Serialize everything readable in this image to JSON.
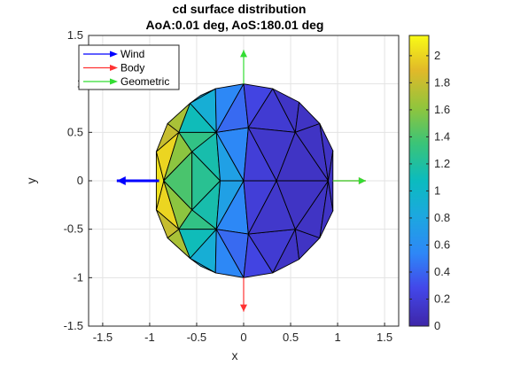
{
  "chart_data": {
    "type": "surface-mesh",
    "title": "cd surface distribution",
    "subtitle": "AoA:0.01 deg,  AoS:180.01 deg",
    "xlabel": "x",
    "ylabel": "y",
    "xlim": [
      -1.65,
      1.65
    ],
    "ylim": [
      -1.5,
      1.5
    ],
    "xticks": [
      -1.5,
      -1,
      -0.5,
      0,
      0.5,
      1,
      1.5
    ],
    "yticks": [
      -1.5,
      -1,
      -0.5,
      0,
      0.5,
      1,
      1.5
    ],
    "grid": true,
    "colormap": "parula",
    "colorbar": {
      "min": 0,
      "max": 2.15,
      "ticks": [
        0,
        0.2,
        0.4,
        0.6,
        0.8,
        1,
        1.2,
        1.4,
        1.6,
        1.8,
        2
      ]
    },
    "legend": {
      "position": "top-left",
      "entries": [
        {
          "name": "Wind",
          "color": "#0000ff"
        },
        {
          "name": "Body",
          "color": "#ff3333"
        },
        {
          "name": "Geometric",
          "color": "#33dd33"
        }
      ]
    },
    "vectors": [
      {
        "series": "Wind",
        "from": [
          -0.9,
          0
        ],
        "to": [
          -1.35,
          0
        ],
        "color": "#0000ff",
        "bold": true
      },
      {
        "series": "Body",
        "from": [
          0,
          -1
        ],
        "to": [
          0,
          -1.35
        ],
        "color": "#ff3333"
      },
      {
        "series": "Body",
        "from": [
          0.95,
          0
        ],
        "to": [
          1.3,
          0
        ],
        "color": "#ff3333"
      },
      {
        "series": "Geometric",
        "from": [
          0,
          1
        ],
        "to": [
          0,
          1.35
        ],
        "color": "#33dd33"
      },
      {
        "series": "Geometric",
        "from": [
          0.95,
          0
        ],
        "to": [
          1.3,
          0
        ],
        "color": "#33dd33"
      }
    ],
    "faces": [
      {
        "pts": [
          [
            -0.93,
            0.3
          ],
          [
            -0.85,
            0
          ],
          [
            -0.69,
            0.5
          ]
        ],
        "cd": 2.0
      },
      {
        "pts": [
          [
            -0.93,
            -0.3
          ],
          [
            -0.85,
            0
          ],
          [
            -0.69,
            -0.5
          ]
        ],
        "cd": 2.0
      },
      {
        "pts": [
          [
            -0.85,
            0
          ],
          [
            -0.93,
            0.3
          ],
          [
            -0.93,
            -0.3
          ]
        ],
        "cd": 2.05
      },
      {
        "pts": [
          [
            -0.85,
            0
          ],
          [
            -0.69,
            0.5
          ],
          [
            -0.55,
            0.3
          ]
        ],
        "cd": 1.6
      },
      {
        "pts": [
          [
            -0.85,
            0
          ],
          [
            -0.69,
            -0.5
          ],
          [
            -0.55,
            -0.3
          ]
        ],
        "cd": 1.6
      },
      {
        "pts": [
          [
            -0.85,
            0
          ],
          [
            -0.55,
            0.3
          ],
          [
            -0.55,
            -0.3
          ]
        ],
        "cd": 1.4
      },
      {
        "pts": [
          [
            -0.69,
            0.5
          ],
          [
            -0.55,
            0.3
          ],
          [
            -0.29,
            0.5
          ]
        ],
        "cd": 1.3
      },
      {
        "pts": [
          [
            -0.69,
            -0.5
          ],
          [
            -0.55,
            -0.3
          ],
          [
            -0.29,
            -0.5
          ]
        ],
        "cd": 1.3
      },
      {
        "pts": [
          [
            -0.69,
            0.5
          ],
          [
            -0.57,
            0.8
          ],
          [
            -0.29,
            0.5
          ]
        ],
        "cd": 1.1
      },
      {
        "pts": [
          [
            -0.69,
            -0.5
          ],
          [
            -0.57,
            -0.8
          ],
          [
            -0.29,
            -0.5
          ]
        ],
        "cd": 1.1
      },
      {
        "pts": [
          [
            -0.69,
            0.5
          ],
          [
            -0.57,
            0.8
          ],
          [
            -0.81,
            0.59
          ]
        ],
        "cd": 1.7
      },
      {
        "pts": [
          [
            -0.69,
            -0.5
          ],
          [
            -0.57,
            -0.8
          ],
          [
            -0.81,
            -0.59
          ]
        ],
        "cd": 1.7
      },
      {
        "pts": [
          [
            -0.69,
            0.5
          ],
          [
            -0.81,
            0.59
          ],
          [
            -0.93,
            0.3
          ]
        ],
        "cd": 1.8
      },
      {
        "pts": [
          [
            -0.69,
            -0.5
          ],
          [
            -0.81,
            -0.59
          ],
          [
            -0.93,
            -0.3
          ]
        ],
        "cd": 1.8
      },
      {
        "pts": [
          [
            -0.55,
            0.3
          ],
          [
            -0.29,
            0.5
          ],
          [
            -0.25,
            0
          ]
        ],
        "cd": 1.15
      },
      {
        "pts": [
          [
            -0.55,
            -0.3
          ],
          [
            -0.29,
            -0.5
          ],
          [
            -0.25,
            0
          ]
        ],
        "cd": 1.15
      },
      {
        "pts": [
          [
            -0.55,
            0.3
          ],
          [
            -0.55,
            -0.3
          ],
          [
            -0.25,
            0
          ]
        ],
        "cd": 1.25
      },
      {
        "pts": [
          [
            -0.29,
            0.5
          ],
          [
            -0.25,
            0
          ],
          [
            0,
            0
          ]
        ],
        "cd": 0.75
      },
      {
        "pts": [
          [
            -0.29,
            -0.5
          ],
          [
            -0.25,
            0
          ],
          [
            0,
            0
          ]
        ],
        "cd": 0.75
      },
      {
        "pts": [
          [
            -0.29,
            0.5
          ],
          [
            0,
            0
          ],
          [
            0.05,
            0.55
          ]
        ],
        "cd": 0.55
      },
      {
        "pts": [
          [
            -0.29,
            -0.5
          ],
          [
            0,
            0
          ],
          [
            0.05,
            -0.55
          ]
        ],
        "cd": 0.55
      },
      {
        "pts": [
          [
            -0.29,
            0.5
          ],
          [
            -0.57,
            0.8
          ],
          [
            -0.3,
            0.95
          ]
        ],
        "cd": 0.9
      },
      {
        "pts": [
          [
            -0.29,
            -0.5
          ],
          [
            -0.57,
            -0.8
          ],
          [
            -0.3,
            -0.95
          ]
        ],
        "cd": 0.9
      },
      {
        "pts": [
          [
            -0.29,
            0.5
          ],
          [
            -0.3,
            0.95
          ],
          [
            0,
            1
          ]
        ],
        "cd": 0.55
      },
      {
        "pts": [
          [
            -0.29,
            -0.5
          ],
          [
            -0.3,
            -0.95
          ],
          [
            0,
            -1
          ]
        ],
        "cd": 0.55
      },
      {
        "pts": [
          [
            -0.29,
            0.5
          ],
          [
            0,
            1
          ],
          [
            0.05,
            0.55
          ]
        ],
        "cd": 0.42
      },
      {
        "pts": [
          [
            -0.29,
            -0.5
          ],
          [
            0,
            -1
          ],
          [
            0.05,
            -0.55
          ]
        ],
        "cd": 0.42
      },
      {
        "pts": [
          [
            -0.57,
            0.8
          ],
          [
            -0.3,
            0.95
          ],
          [
            -0.46,
            0.88
          ]
        ],
        "cd": 0.8
      },
      {
        "pts": [
          [
            -0.57,
            -0.8
          ],
          [
            -0.3,
            -0.95
          ],
          [
            -0.46,
            -0.88
          ]
        ],
        "cd": 0.8
      },
      {
        "pts": [
          [
            0,
            1
          ],
          [
            0.05,
            0.55
          ],
          [
            0.31,
            0.95
          ]
        ],
        "cd": 0.25
      },
      {
        "pts": [
          [
            0,
            -1
          ],
          [
            0.05,
            -0.55
          ],
          [
            0.31,
            -0.95
          ]
        ],
        "cd": 0.25
      },
      {
        "pts": [
          [
            0.05,
            0.55
          ],
          [
            0.31,
            0.95
          ],
          [
            0.55,
            0.5
          ]
        ],
        "cd": 0.18
      },
      {
        "pts": [
          [
            0.05,
            -0.55
          ],
          [
            0.31,
            -0.95
          ],
          [
            0.55,
            -0.5
          ]
        ],
        "cd": 0.18
      },
      {
        "pts": [
          [
            0,
            0
          ],
          [
            0.05,
            0.55
          ],
          [
            0.35,
            0
          ]
        ],
        "cd": 0.2
      },
      {
        "pts": [
          [
            0,
            0
          ],
          [
            0.05,
            -0.55
          ],
          [
            0.35,
            0
          ]
        ],
        "cd": 0.2
      },
      {
        "pts": [
          [
            0.05,
            0.55
          ],
          [
            0.35,
            0
          ],
          [
            0.55,
            0.5
          ]
        ],
        "cd": 0.15
      },
      {
        "pts": [
          [
            0.05,
            -0.55
          ],
          [
            0.35,
            0
          ],
          [
            0.55,
            -0.5
          ]
        ],
        "cd": 0.15
      },
      {
        "pts": [
          [
            0.31,
            0.95
          ],
          [
            0.55,
            0.5
          ],
          [
            0.59,
            0.81
          ]
        ],
        "cd": 0.13
      },
      {
        "pts": [
          [
            0.31,
            -0.95
          ],
          [
            0.55,
            -0.5
          ],
          [
            0.59,
            -0.81
          ]
        ],
        "cd": 0.13
      },
      {
        "pts": [
          [
            0.55,
            0.5
          ],
          [
            0.59,
            0.81
          ],
          [
            0.81,
            0.59
          ]
        ],
        "cd": 0.12
      },
      {
        "pts": [
          [
            0.55,
            -0.5
          ],
          [
            0.59,
            -0.81
          ],
          [
            0.81,
            -0.59
          ]
        ],
        "cd": 0.12
      },
      {
        "pts": [
          [
            0.55,
            0.5
          ],
          [
            0.81,
            0.59
          ],
          [
            0.9,
            0
          ]
        ],
        "cd": 0.12
      },
      {
        "pts": [
          [
            0.55,
            -0.5
          ],
          [
            0.81,
            -0.59
          ],
          [
            0.9,
            0
          ]
        ],
        "cd": 0.12
      },
      {
        "pts": [
          [
            0.35,
            0
          ],
          [
            0.55,
            0.5
          ],
          [
            0.9,
            0
          ]
        ],
        "cd": 0.12
      },
      {
        "pts": [
          [
            0.35,
            0
          ],
          [
            0.55,
            -0.5
          ],
          [
            0.9,
            0
          ]
        ],
        "cd": 0.12
      },
      {
        "pts": [
          [
            0.81,
            0.59
          ],
          [
            0.95,
            0.31
          ],
          [
            0.9,
            0
          ]
        ],
        "cd": 0.12
      },
      {
        "pts": [
          [
            0.81,
            -0.59
          ],
          [
            0.95,
            -0.31
          ],
          [
            0.9,
            0
          ]
        ],
        "cd": 0.12
      },
      {
        "pts": [
          [
            0.9,
            0
          ],
          [
            0.95,
            0.31
          ],
          [
            0.95,
            -0.31
          ]
        ],
        "cd": 0.12
      }
    ]
  }
}
